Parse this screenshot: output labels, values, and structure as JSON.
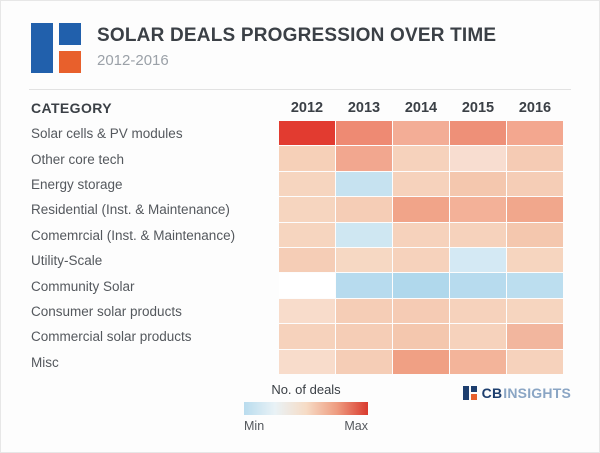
{
  "header": {
    "title": "SOLAR DEALS PROGRESSION OVER TIME",
    "subtitle": "2012-2016"
  },
  "chart_data": {
    "type": "heatmap",
    "title": "SOLAR DEALS PROGRESSION OVER TIME",
    "subtitle": "2012-2016",
    "category_axis_label": "CATEGORY",
    "x": [
      "2012",
      "2013",
      "2014",
      "2015",
      "2016"
    ],
    "categories": [
      "Solar cells & PV modules",
      "Other core tech",
      "Energy storage",
      "Residential (Inst. & Maintenance)",
      "Comemrcial (Inst. & Maintenance)",
      "Utility-Scale",
      "Community Solar",
      "Consumer solar products",
      "Commercial solar products",
      "Misc"
    ],
    "cells": [
      [
        "#e23b30",
        "#ee8a73",
        "#f3ad96",
        "#ee9078",
        "#f3a78f"
      ],
      [
        "#f6d0b8",
        "#f2a78f",
        "#f6d2bc",
        "#f8ddd0",
        "#f5cbb4"
      ],
      [
        "#f6d5bf",
        "#c6e2f0",
        "#f6d2bc",
        "#f4c7ae",
        "#f5cdb6"
      ],
      [
        "#f6d5bf",
        "#f5cdb6",
        "#f1a489",
        "#f3b198",
        "#f1a78c"
      ],
      [
        "#f6d5bf",
        "#cfe7f2",
        "#f6d2bc",
        "#f6d2bc",
        "#f4c7ae"
      ],
      [
        "#f5cdb6",
        "#f6d8c3",
        "#f6d2bc",
        "#d4e9f4",
        "#f6d5bf"
      ],
      [
        "#ffffff",
        "#b7dbee",
        "#b0d8ec",
        "#b7dbee",
        "#bcdeef"
      ],
      [
        "#f8dccb",
        "#f5cdb6",
        "#f5cbb4",
        "#f6d2bc",
        "#f6d5bf"
      ],
      [
        "#f6d2bc",
        "#f5cdb6",
        "#f4c7ae",
        "#f6d2bc",
        "#f2b69e"
      ],
      [
        "#f8dccb",
        "#f5cdb6",
        "#f0a084",
        "#f3b49a",
        "#f6d2bc"
      ]
    ],
    "legend": {
      "label": "No. of deals",
      "min": "Min",
      "max": "Max",
      "gradient": [
        "#b9dcee",
        "#e9f2f6",
        "#f6dcc6",
        "#ee9c80",
        "#d93a2e"
      ]
    },
    "colors": {
      "min_color": "#b9dcee",
      "max_color": "#d93a2e",
      "no_data_color": "#ffffff"
    }
  },
  "footer": {
    "brand_bold": "CB",
    "brand_light": "INSIGHTS"
  }
}
